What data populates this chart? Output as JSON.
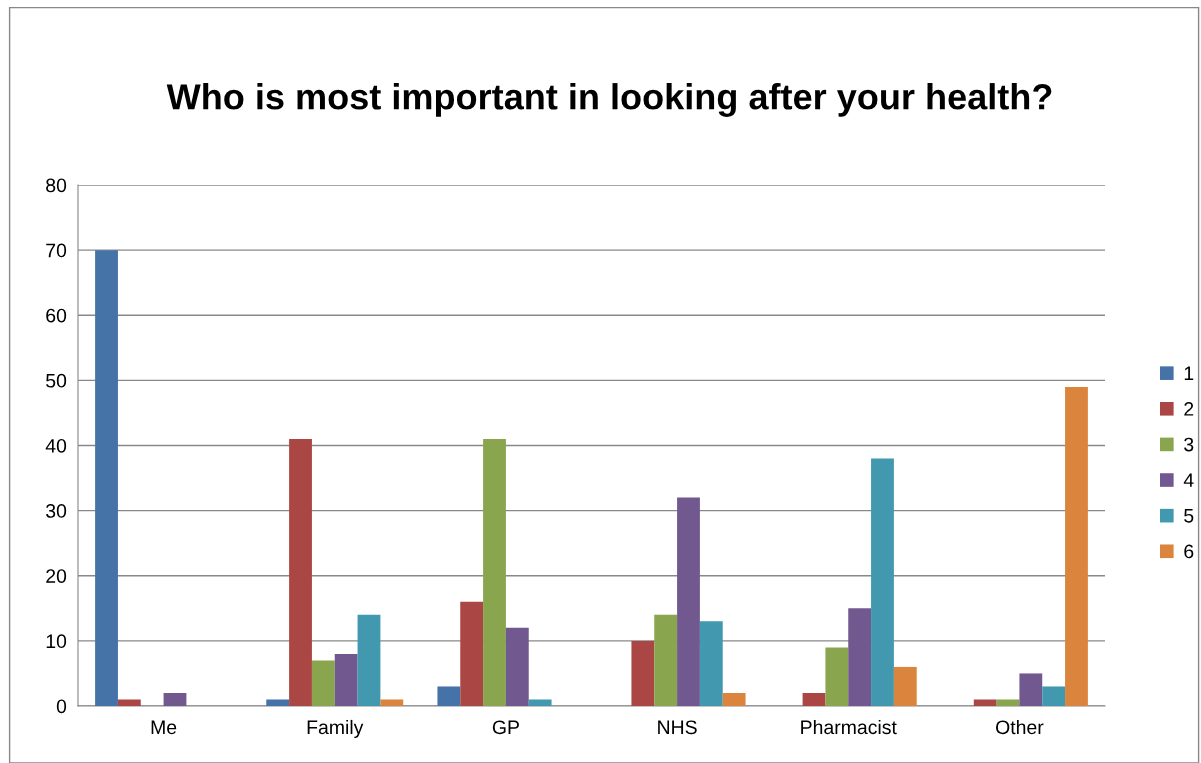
{
  "chart_data": {
    "type": "bar",
    "title": "Who is most important in looking after your health?",
    "categories": [
      "Me",
      "Family",
      "GP",
      "NHS",
      "Pharmacist",
      "Other"
    ],
    "series": [
      {
        "name": "1",
        "color": "#4572a7",
        "values": [
          70,
          1,
          3,
          0,
          0,
          0
        ]
      },
      {
        "name": "2",
        "color": "#aa4643",
        "values": [
          1,
          41,
          16,
          10,
          2,
          1
        ]
      },
      {
        "name": "3",
        "color": "#89a54e",
        "values": [
          0,
          7,
          41,
          14,
          9,
          1
        ]
      },
      {
        "name": "4",
        "color": "#71588f",
        "values": [
          2,
          8,
          12,
          32,
          15,
          5
        ]
      },
      {
        "name": "5",
        "color": "#4198af",
        "values": [
          0,
          14,
          1,
          13,
          38,
          3
        ]
      },
      {
        "name": "6",
        "color": "#db843d",
        "values": [
          0,
          1,
          0,
          2,
          6,
          49
        ]
      }
    ],
    "ylim": [
      0,
      80
    ],
    "yticks": [
      0,
      10,
      20,
      30,
      40,
      50,
      60,
      70,
      80
    ],
    "grid": "y",
    "legend": "right"
  }
}
